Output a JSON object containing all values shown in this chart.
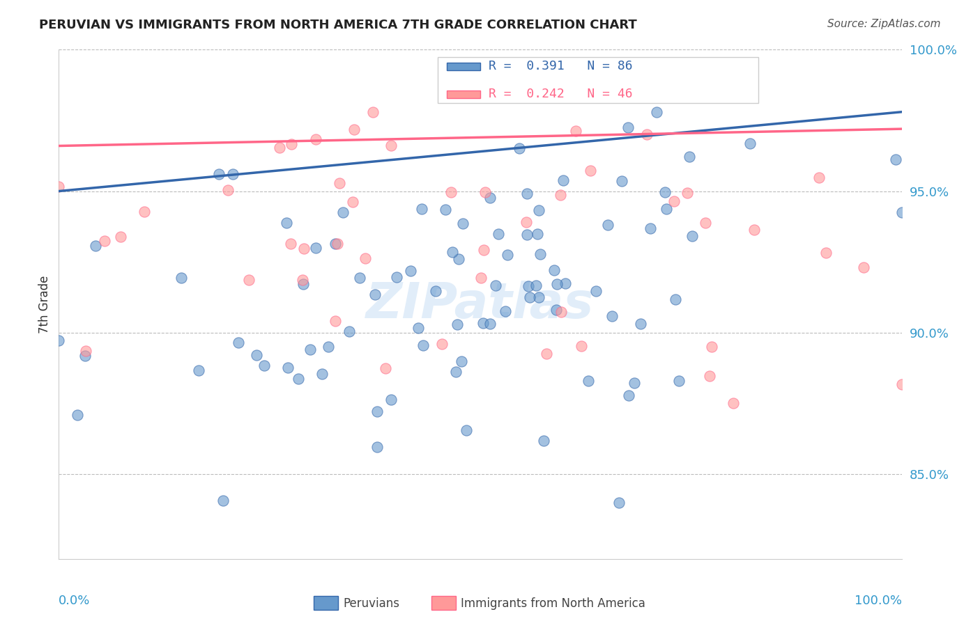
{
  "title": "PERUVIAN VS IMMIGRANTS FROM NORTH AMERICA 7TH GRADE CORRELATION CHART",
  "source": "Source: ZipAtlas.com",
  "ylabel": "7th Grade",
  "legend_blue_label": "Peruvians",
  "legend_pink_label": "Immigrants from North America",
  "R_blue": 0.391,
  "N_blue": 86,
  "R_pink": 0.242,
  "N_pink": 46,
  "blue_color": "#6699CC",
  "pink_color": "#FF9999",
  "trendline_blue": "#3366AA",
  "trendline_pink": "#FF6688",
  "ytick_vals": [
    1.0,
    0.95,
    0.9,
    0.85
  ],
  "ytick_labels": [
    "100.0%",
    "95.0%",
    "90.0%",
    "85.0%"
  ],
  "xlim": [
    0.0,
    1.0
  ],
  "ylim": [
    0.82,
    0.985
  ],
  "blue_trend_x": [
    0.0,
    1.0
  ],
  "blue_trend_y": [
    0.95,
    0.978
  ],
  "pink_trend_x": [
    0.0,
    1.0
  ],
  "pink_trend_y": [
    0.966,
    0.972
  ]
}
